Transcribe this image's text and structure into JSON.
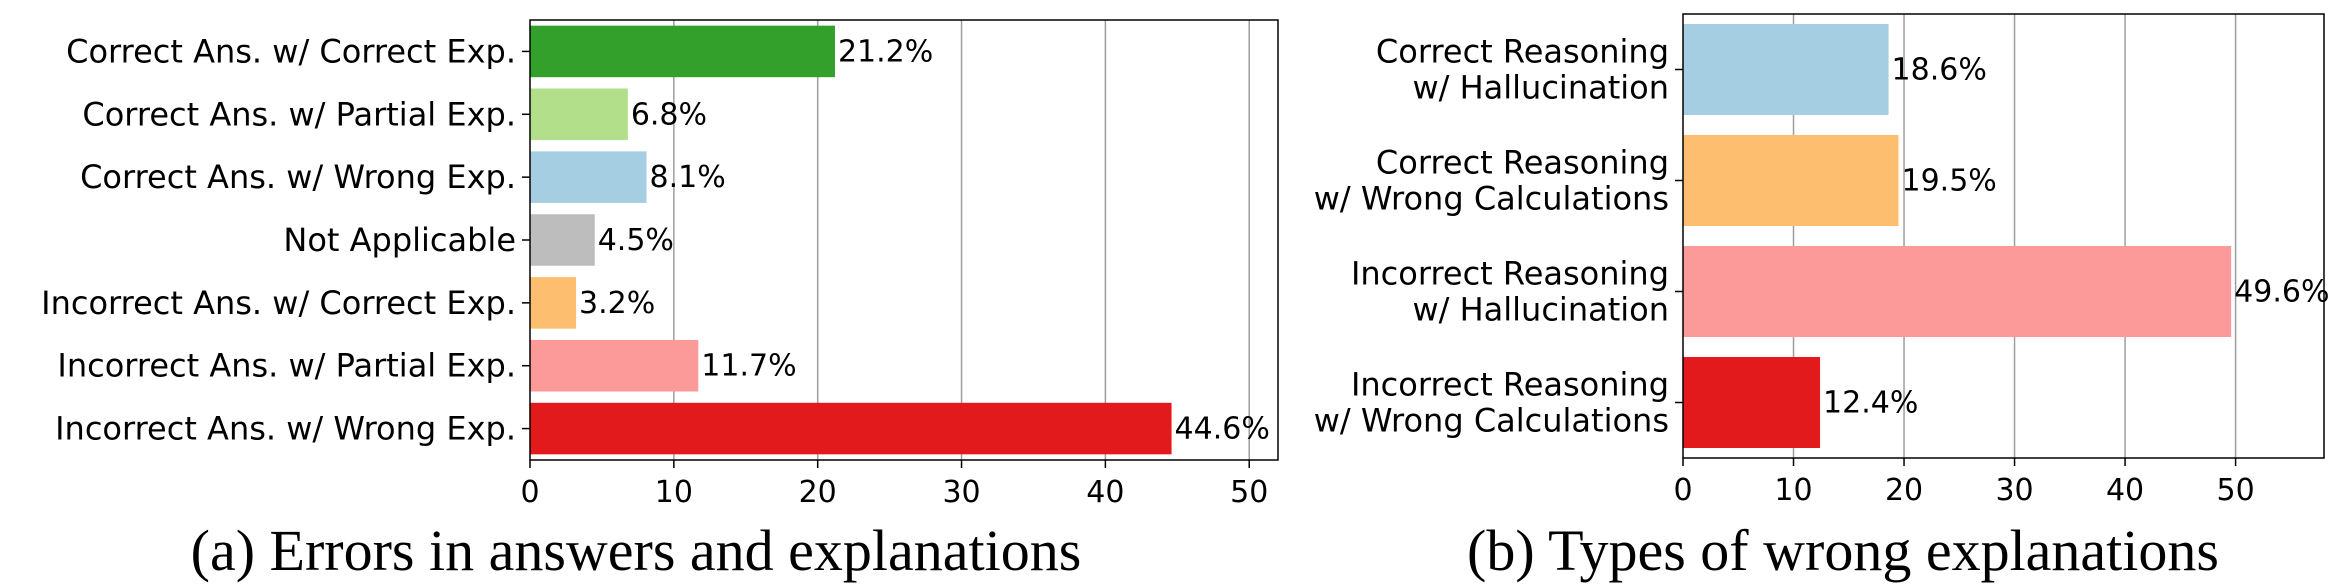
{
  "chart_data": [
    {
      "type": "bar",
      "orientation": "horizontal",
      "caption": "(a) Errors in answers and explanations",
      "categories": [
        "Correct Ans. w/ Correct Exp.",
        "Correct Ans. w/ Partial Exp.",
        "Correct Ans. w/ Wrong Exp.",
        "Not Applicable",
        "Incorrect Ans. w/ Correct Exp.",
        "Incorrect Ans. w/ Partial Exp.",
        "Incorrect Ans. w/ Wrong Exp."
      ],
      "values": [
        21.2,
        6.8,
        8.1,
        4.5,
        3.2,
        11.7,
        44.6
      ],
      "value_labels": [
        "21.2%",
        "6.8%",
        "8.1%",
        "4.5%",
        "3.2%",
        "11.7%",
        "44.6%"
      ],
      "colors": [
        "#33a02c",
        "#b2df8a",
        "#a6cee3",
        "#bdbdbd",
        "#fdbf6f",
        "#fb9a99",
        "#e31a1c"
      ],
      "xlim": [
        0,
        52
      ],
      "xticks": [
        0,
        10,
        20,
        30,
        40,
        50
      ],
      "grid": "vertical",
      "legend": "none"
    },
    {
      "type": "bar",
      "orientation": "horizontal",
      "caption": "(b) Types of wrong explanations",
      "categories": [
        [
          "Correct Reasoning",
          "w/ Hallucination"
        ],
        [
          "Correct Reasoning",
          "w/ Wrong Calculations"
        ],
        [
          "Incorrect Reasoning",
          "w/ Hallucination"
        ],
        [
          "Incorrect Reasoning",
          "w/ Wrong Calculations"
        ]
      ],
      "values": [
        18.6,
        19.5,
        49.6,
        12.4
      ],
      "value_labels": [
        "18.6%",
        "19.5%",
        "49.6%",
        "12.4%"
      ],
      "colors": [
        "#a6cee3",
        "#fdbf6f",
        "#fb9a99",
        "#e31a1c"
      ],
      "xlim": [
        0,
        58
      ],
      "xticks": [
        0,
        10,
        20,
        30,
        40,
        50
      ],
      "grid": "vertical",
      "legend": "none"
    }
  ]
}
